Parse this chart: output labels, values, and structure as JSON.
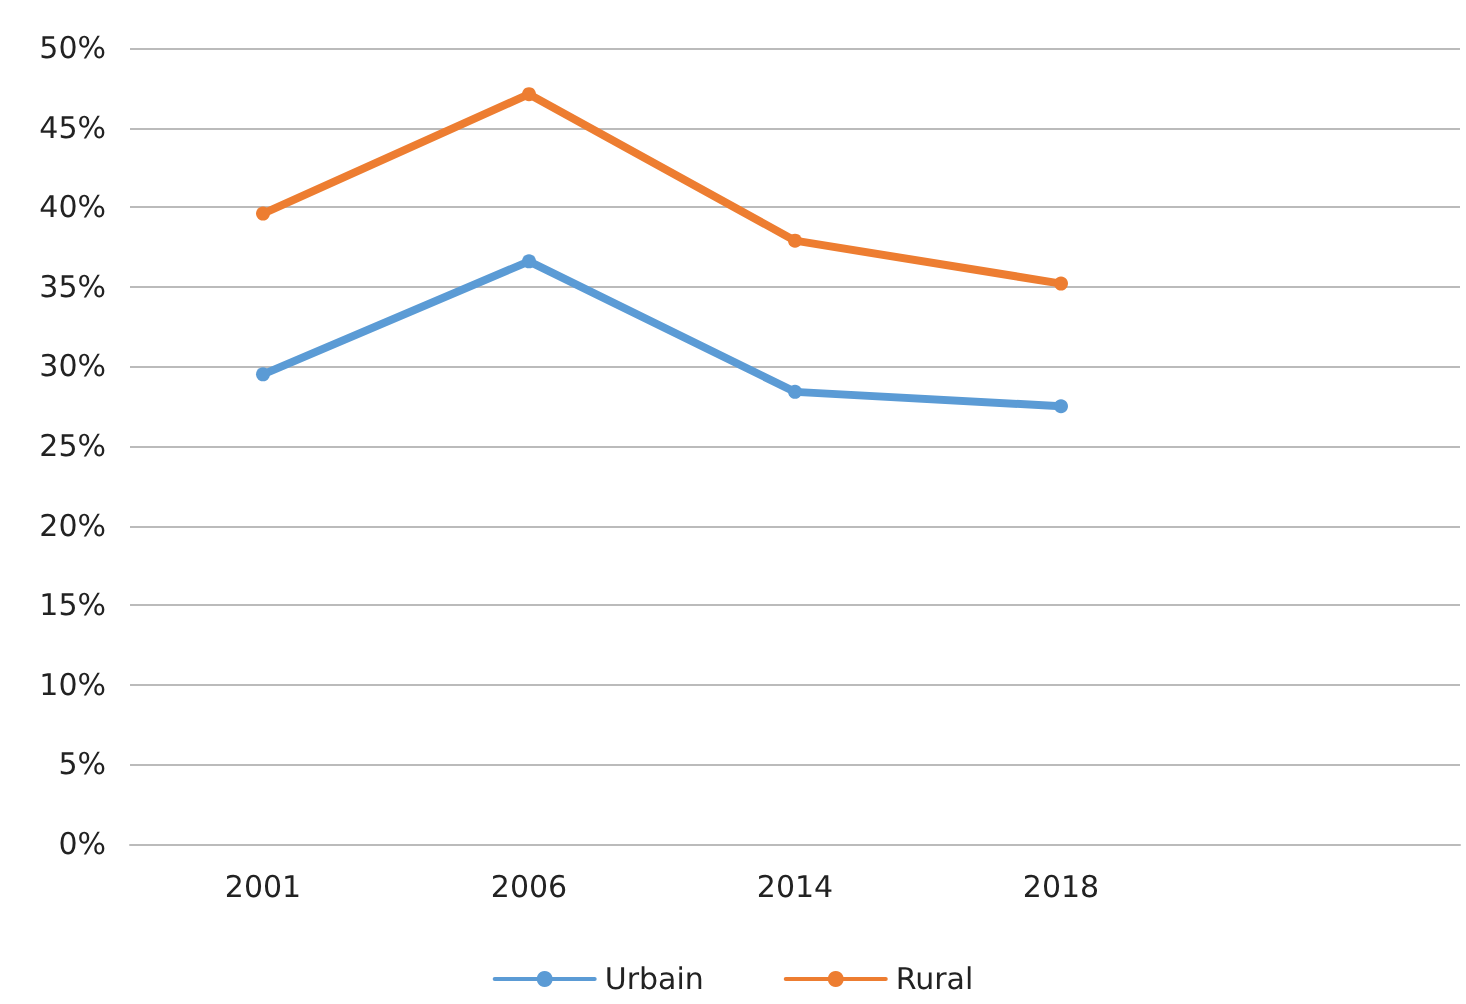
{
  "chart_data": {
    "type": "line",
    "categories": [
      "2001",
      "2006",
      "2014",
      "2018",
      null
    ],
    "series": [
      {
        "name": "Urbain",
        "color": "#5b9bd5",
        "values": [
          29.5,
          36.6,
          28.4,
          27.5,
          null
        ]
      },
      {
        "name": "Rural",
        "color": "#ed7d31",
        "values": [
          39.6,
          47.1,
          37.9,
          35.2,
          null
        ]
      }
    ],
    "ylim": [
      0,
      50
    ],
    "yticks": [
      {
        "value": 0,
        "label": "0%"
      },
      {
        "value": 5,
        "label": "5%"
      },
      {
        "value": 10,
        "label": "10%"
      },
      {
        "value": 15,
        "label": "15%"
      },
      {
        "value": 20,
        "label": "20%"
      },
      {
        "value": 25,
        "label": "25%"
      },
      {
        "value": 30,
        "label": "30%"
      },
      {
        "value": 35,
        "label": "35%"
      },
      {
        "value": 40,
        "label": "40%"
      },
      {
        "value": 45,
        "label": "45%"
      },
      {
        "value": 50,
        "label": "50%"
      }
    ],
    "grid": "y",
    "legend": "bottom",
    "marker": "circle",
    "line_style": "solid"
  }
}
